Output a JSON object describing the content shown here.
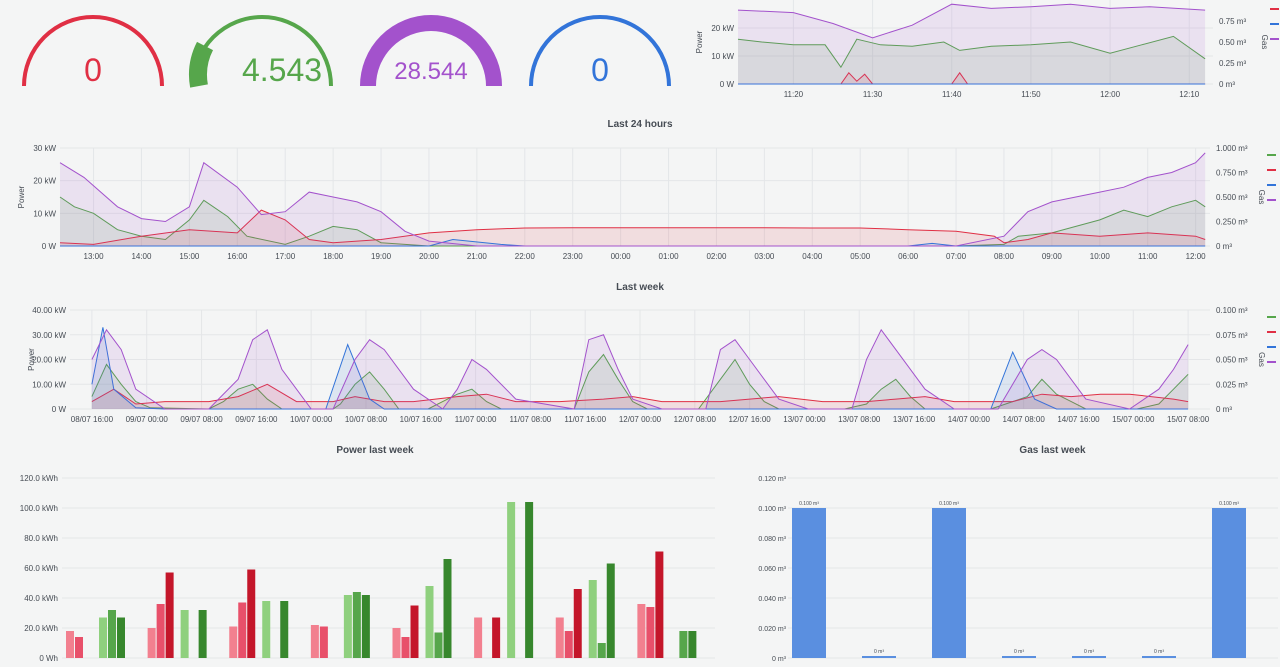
{
  "colors": {
    "red": "#e02f44",
    "green": "#56a64b",
    "blue": "#3274d9",
    "purple": "#a352cc",
    "grid": "#e4e6e8",
    "axis": "#464c54"
  },
  "gauges": [
    {
      "value": "0",
      "color": "#e02f44",
      "fill": 0
    },
    {
      "value": "4.543",
      "color": "#56a64b",
      "fill": 0.12
    },
    {
      "value": "28.544",
      "color": "#a352cc",
      "fill": 0.95
    },
    {
      "value": "0",
      "color": "#3274d9",
      "fill": 0
    }
  ],
  "chart_data": [
    {
      "type": "area",
      "title": "",
      "ylabel_left": "Power",
      "ylabel_right": "Gas",
      "y_ticks_left": [
        "0 W",
        "10 kW",
        "20 kW"
      ],
      "y_ticks_right": [
        "0 m³",
        "0.25 m³",
        "0.50 m³",
        "0.75 m³"
      ],
      "x_ticks": [
        "11:20",
        "11:30",
        "11:40",
        "11:50",
        "12:00",
        "12:10"
      ],
      "ylim_left": [
        0,
        30000
      ],
      "ylim_right": [
        0,
        1
      ],
      "legend_colors": [
        "#e02f44",
        "#3274d9",
        "#a352cc"
      ],
      "series": [
        {
          "color": "#56a64b",
          "axis": "left",
          "x": [
            "11:13",
            "11:16",
            "11:20",
            "11:24",
            "11:26",
            "11:28",
            "11:31",
            "11:35",
            "11:39",
            "11:41",
            "11:45",
            "11:50",
            "11:55",
            "12:00",
            "12:04",
            "12:08",
            "12:12"
          ],
          "values": [
            16000,
            15000,
            14000,
            14000,
            6000,
            16000,
            14000,
            13500,
            15000,
            12000,
            13500,
            14000,
            15000,
            11000,
            14000,
            17000,
            9000
          ]
        },
        {
          "color": "#e02f44",
          "axis": "left",
          "x": [
            "11:13",
            "11:26",
            "11:27",
            "11:28",
            "11:29",
            "11:30",
            "11:40",
            "11:41",
            "11:42",
            "12:12"
          ],
          "values": [
            0,
            0,
            4000,
            1000,
            3500,
            0,
            0,
            4000,
            0,
            0
          ]
        },
        {
          "color": "#3274d9",
          "axis": "left",
          "x": [
            "11:13",
            "12:12"
          ],
          "values": [
            0,
            0
          ]
        },
        {
          "color": "#a352cc",
          "axis": "right",
          "x": [
            "11:13",
            "11:20",
            "11:25",
            "11:30",
            "11:35",
            "11:40",
            "11:45",
            "11:50",
            "11:55",
            "12:00",
            "12:05",
            "12:12"
          ],
          "values": [
            0.88,
            0.85,
            0.72,
            0.55,
            0.7,
            0.95,
            0.9,
            0.92,
            0.95,
            0.9,
            0.92,
            0.88
          ]
        }
      ]
    },
    {
      "type": "area",
      "title": "Last 24 hours",
      "ylabel_left": "Power",
      "ylabel_right": "Gas",
      "y_ticks_left": [
        "0 W",
        "10 kW",
        "20 kW",
        "30 kW"
      ],
      "y_ticks_right": [
        "0 m³",
        "0.250 m³",
        "0.500 m³",
        "0.750 m³",
        "1.000 m³"
      ],
      "x_ticks": [
        "13:00",
        "14:00",
        "15:00",
        "16:00",
        "17:00",
        "18:00",
        "19:00",
        "20:00",
        "21:00",
        "22:00",
        "23:00",
        "00:00",
        "01:00",
        "02:00",
        "03:00",
        "04:00",
        "05:00",
        "06:00",
        "07:00",
        "08:00",
        "09:00",
        "10:00",
        "11:00",
        "12:00"
      ],
      "ylim_left": [
        0,
        30000
      ],
      "ylim_right": [
        0,
        1
      ],
      "legend_colors": [
        "#56a64b",
        "#e02f44",
        "#3274d9",
        "#a352cc"
      ],
      "series": [
        {
          "color": "#56a64b",
          "axis": "left",
          "x": [
            12.3,
            12.6,
            13,
            13.5,
            14,
            14.5,
            15,
            15.3,
            15.8,
            16.2,
            17,
            17.5,
            18,
            18.5,
            19,
            19.5,
            20,
            21,
            22,
            23,
            24,
            25,
            26,
            27,
            28,
            29,
            30,
            31,
            32,
            32.3,
            33,
            33.5,
            34,
            34.5,
            35,
            35.5,
            36,
            36.2
          ],
          "values": [
            15000,
            12000,
            10000,
            5000,
            3000,
            2000,
            8000,
            14000,
            9000,
            3000,
            500,
            3000,
            6000,
            5000,
            1000,
            500,
            0,
            0,
            0,
            0,
            0,
            0,
            0,
            0,
            0,
            0,
            0,
            0,
            500,
            3000,
            4000,
            6000,
            8000,
            11000,
            9000,
            12000,
            14000,
            12000
          ]
        },
        {
          "color": "#e02f44",
          "axis": "left",
          "x": [
            12.3,
            13,
            14,
            15,
            16,
            16.5,
            17,
            17.5,
            18,
            19,
            20,
            21,
            22,
            23,
            24,
            25,
            26,
            27,
            28,
            29,
            30,
            31,
            31.8,
            32,
            32.5,
            33,
            34,
            35,
            36,
            36.2
          ],
          "values": [
            1000,
            500,
            3000,
            5000,
            4000,
            11000,
            8000,
            2000,
            1000,
            2000,
            4000,
            5000,
            5500,
            5600,
            5600,
            5600,
            5600,
            5600,
            5500,
            5500,
            5000,
            4500,
            3000,
            1000,
            2000,
            4000,
            3000,
            4000,
            3000,
            2000
          ]
        },
        {
          "color": "#3274d9",
          "axis": "left",
          "x": [
            12.3,
            20,
            20.5,
            21.5,
            22,
            30,
            30.5,
            31,
            32,
            36.2
          ],
          "values": [
            0,
            0,
            2000,
            500,
            0,
            0,
            800,
            0,
            0,
            0
          ]
        },
        {
          "color": "#a352cc",
          "axis": "right",
          "x": [
            12.3,
            12.8,
            13.5,
            14,
            14.5,
            15,
            15.3,
            16,
            16.5,
            17,
            17.5,
            18,
            18.5,
            19,
            19.5,
            20,
            21,
            22,
            23,
            24,
            25,
            26,
            27,
            28,
            29,
            30,
            31,
            32,
            32.5,
            33,
            33.5,
            34,
            34.5,
            35,
            35.5,
            36,
            36.2
          ],
          "values": [
            0.85,
            0.7,
            0.4,
            0.28,
            0.25,
            0.4,
            0.85,
            0.6,
            0.32,
            0.35,
            0.55,
            0.5,
            0.45,
            0.35,
            0.15,
            0.05,
            0,
            0,
            0,
            0,
            0,
            0,
            0,
            0,
            0,
            0,
            0,
            0.1,
            0.35,
            0.45,
            0.5,
            0.55,
            0.6,
            0.7,
            0.75,
            0.85,
            0.95
          ]
        }
      ]
    },
    {
      "type": "area",
      "title": "Last week",
      "ylabel_left": "Power",
      "ylabel_right": "Gas",
      "y_ticks_left": [
        "0 W",
        "10.00 kW",
        "20.00 kW",
        "30.00 kW",
        "40.00 kW"
      ],
      "y_ticks_right": [
        "0 m³",
        "0.025 m³",
        "0.050 m³",
        "0.075 m³",
        "0.100 m³"
      ],
      "x_ticks": [
        "08/07 16:00",
        "09/07 00:00",
        "09/07 08:00",
        "09/07 16:00",
        "10/07 00:00",
        "10/07 08:00",
        "10/07 16:00",
        "11/07 00:00",
        "11/07 08:00",
        "11/07 16:00",
        "12/07 00:00",
        "12/07 08:00",
        "12/07 16:00",
        "13/07 00:00",
        "13/07 08:00",
        "13/07 16:00",
        "14/07 00:00",
        "14/07 08:00",
        "14/07 16:00",
        "15/07 00:00",
        "15/07 08:00"
      ],
      "ylim_left": [
        0,
        40000
      ],
      "ylim_right": [
        0,
        0.1
      ],
      "legend_colors": [
        "#56a64b",
        "#e02f44",
        "#3274d9",
        "#a352cc"
      ],
      "series": [
        {
          "color": "#56a64b",
          "axis": "left",
          "x": [
            0,
            0.2,
            0.4,
            0.6,
            0.8,
            1.6,
            1.8,
            2.0,
            2.2,
            2.4,
            2.6,
            3.3,
            3.4,
            3.6,
            3.8,
            4.0,
            4.2,
            4.6,
            4.8,
            5.0,
            5.2,
            5.4,
            5.6,
            6.6,
            6.8,
            7.0,
            7.2,
            7.4,
            7.6,
            8.3,
            8.6,
            8.8,
            9.0,
            9.2,
            9.4,
            10.3,
            10.6,
            10.8,
            11.0,
            11.2,
            11.4,
            12.3,
            12.6,
            12.8,
            13.0,
            13.2,
            13.4,
            13.6,
            14.3,
            14.6,
            14.8,
            15.0
          ],
          "values": [
            5000,
            18000,
            10000,
            3000,
            500,
            0,
            3000,
            8000,
            10000,
            4000,
            0,
            0,
            2000,
            10000,
            15000,
            8000,
            0,
            0,
            3000,
            6000,
            8000,
            3000,
            0,
            0,
            15000,
            22000,
            12000,
            3000,
            0,
            0,
            12000,
            20000,
            10000,
            3000,
            0,
            0,
            2000,
            8000,
            12000,
            5000,
            0,
            0,
            3000,
            5000,
            12000,
            6000,
            3000,
            0,
            0,
            2000,
            8000,
            14000
          ]
        },
        {
          "color": "#e02f44",
          "axis": "left",
          "x": [
            0,
            0.3,
            0.6,
            1.0,
            1.6,
            2.0,
            2.4,
            2.8,
            3.3,
            3.6,
            4.0,
            4.4,
            5.0,
            5.4,
            5.8,
            6.4,
            7.0,
            7.4,
            7.8,
            8.6,
            9.0,
            9.4,
            10.0,
            10.6,
            11.0,
            11.4,
            11.8,
            12.6,
            13.0,
            13.4,
            13.8,
            14.2,
            14.8,
            15.0
          ],
          "values": [
            3000,
            8000,
            2000,
            3000,
            3000,
            5000,
            10000,
            3000,
            3000,
            5000,
            3000,
            3000,
            5000,
            6000,
            3000,
            3000,
            4000,
            5000,
            3000,
            3000,
            4000,
            5000,
            3000,
            3000,
            4000,
            5000,
            3000,
            3000,
            6000,
            5000,
            6000,
            6000,
            4000,
            3000
          ]
        },
        {
          "color": "#3274d9",
          "axis": "left",
          "x": [
            0,
            0.15,
            0.3,
            0.6,
            1,
            3.2,
            3.5,
            3.8,
            4.0,
            12.3,
            12.6,
            12.9,
            13.2,
            15
          ],
          "values": [
            10000,
            33000,
            8000,
            500,
            0,
            0,
            26000,
            4000,
            0,
            0,
            23000,
            4000,
            0,
            0
          ]
        },
        {
          "color": "#a352cc",
          "axis": "right",
          "x": [
            0,
            0.2,
            0.4,
            0.6,
            1.0,
            1.6,
            2.0,
            2.2,
            2.4,
            2.6,
            3.0,
            3.3,
            3.6,
            3.8,
            4.0,
            4.4,
            4.8,
            5.0,
            5.2,
            5.4,
            5.8,
            6.6,
            6.8,
            7.0,
            7.2,
            7.4,
            7.8,
            8.4,
            8.6,
            8.8,
            9.0,
            9.4,
            9.8,
            10.4,
            10.6,
            10.8,
            11.0,
            11.4,
            11.8,
            12.4,
            12.8,
            13.0,
            13.2,
            13.6,
            14.2,
            14.6,
            14.8,
            15.0
          ],
          "values": [
            0.05,
            0.08,
            0.06,
            0.02,
            0,
            0,
            0.03,
            0.07,
            0.08,
            0.04,
            0,
            0,
            0.05,
            0.07,
            0.06,
            0.02,
            0,
            0.02,
            0.05,
            0.04,
            0.01,
            0,
            0.07,
            0.075,
            0.04,
            0.01,
            0,
            0,
            0.06,
            0.07,
            0.05,
            0.01,
            0,
            0,
            0.05,
            0.08,
            0.06,
            0.02,
            0,
            0,
            0.05,
            0.06,
            0.05,
            0.01,
            0,
            0.02,
            0.04,
            0.065
          ]
        }
      ]
    },
    {
      "type": "bar",
      "title": "Power last week",
      "y_ticks": [
        "0 Wh",
        "20.0 kWh",
        "40.0 kWh",
        "60.0 kWh",
        "80.0 kWh",
        "100.0 kWh",
        "120.0 kWh"
      ],
      "ylim": [
        0,
        120
      ],
      "series_colors": [
        "#f2808f",
        "#e8506a",
        "#c4162a",
        "#8fd07e",
        "#56a64b",
        "#37872d"
      ],
      "groups": [
        [
          18,
          14,
          null,
          27,
          32,
          27
        ],
        [
          20,
          36,
          57,
          32,
          null,
          32
        ],
        [
          21,
          37,
          59,
          38,
          null,
          38
        ],
        [
          22,
          21,
          null,
          42,
          44,
          42
        ],
        [
          20,
          14,
          35,
          48,
          17,
          66
        ],
        [
          27,
          null,
          27,
          104,
          null,
          104
        ],
        [
          27,
          18,
          46,
          52,
          10,
          63
        ],
        [
          36,
          34,
          71,
          null,
          18,
          18
        ]
      ]
    },
    {
      "type": "bar",
      "title": "Gas last week",
      "y_ticks": [
        "0 m³",
        "0.020 m³",
        "0.040 m³",
        "0.060 m³",
        "0.080 m³",
        "0.100 m³",
        "0.120 m³"
      ],
      "ylim": [
        0,
        0.12
      ],
      "categories": [
        "",
        "",
        "",
        "",
        "",
        "",
        ""
      ],
      "values": [
        0.1,
        0,
        0.1,
        0,
        0,
        0,
        0.1
      ],
      "data_labels": [
        "0.100 m³",
        "0 m³",
        "0.100 m³",
        "0 m³",
        "0 m³",
        "0 m³",
        "0.100 m³"
      ]
    }
  ]
}
